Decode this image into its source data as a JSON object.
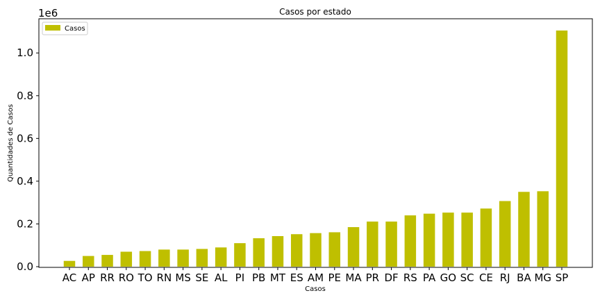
{
  "chart_data": {
    "type": "bar",
    "title": "Casos por estado",
    "xlabel": "Casos",
    "ylabel": "Quantidades de Casos",
    "offset_text": "1e6",
    "legend": {
      "label": "Casos",
      "placement": "upper-left"
    },
    "color": "#bfbf00",
    "ylim": [
      0,
      1160000
    ],
    "yticks": [
      {
        "value": 0,
        "label": "0.0"
      },
      {
        "value": 200000,
        "label": "0.2"
      },
      {
        "value": 400000,
        "label": "0.4"
      },
      {
        "value": 600000,
        "label": "0.6"
      },
      {
        "value": 800000,
        "label": "0.8"
      },
      {
        "value": 1000000,
        "label": "1.0"
      }
    ],
    "categories": [
      "AC",
      "AP",
      "RR",
      "RO",
      "TO",
      "RN",
      "MS",
      "SE",
      "AL",
      "PI",
      "PB",
      "MT",
      "ES",
      "AM",
      "PE",
      "MA",
      "PR",
      "DF",
      "RS",
      "PA",
      "GO",
      "SC",
      "CE",
      "RJ",
      "BA",
      "MG",
      "SP"
    ],
    "values": [
      27000,
      50000,
      55000,
      70000,
      73000,
      80000,
      80000,
      83000,
      90000,
      110000,
      133000,
      143000,
      152000,
      157000,
      161000,
      185000,
      211000,
      211000,
      240000,
      248000,
      253000,
      253000,
      272000,
      307000,
      350000,
      353000,
      1105000
    ],
    "grid": false
  }
}
